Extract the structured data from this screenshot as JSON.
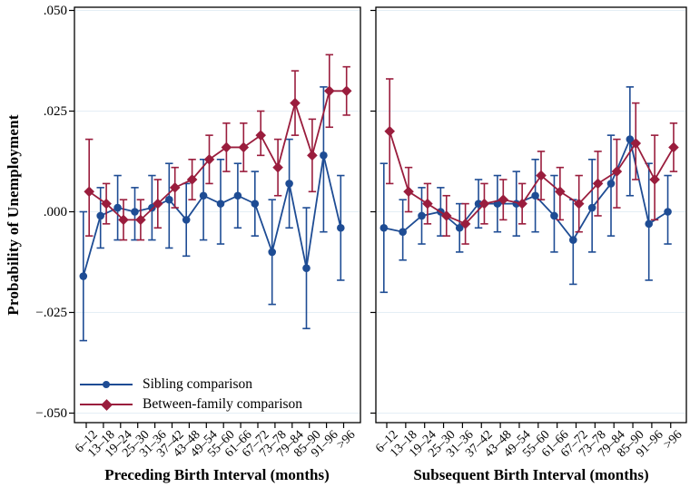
{
  "figure": {
    "y_axis_title": "Probability of Unemployment",
    "y_ticks": {
      "labels": [
        ".050",
        ".025",
        ".000",
        "−.025",
        "−.050"
      ],
      "values": [
        0.05,
        0.025,
        0.0,
        -0.025,
        -0.05
      ]
    },
    "colors": {
      "sibling": "#1e4c94",
      "between_family": "#9a1d3d",
      "grid": "#e4eef5",
      "frame": "#000000"
    },
    "legend": [
      {
        "label": "Sibling comparison",
        "marker": "circle",
        "series": "sibling"
      },
      {
        "label": "Between-family comparison",
        "marker": "diamond",
        "series": "between_family"
      }
    ],
    "x_tick_rotation": 45,
    "legend_position": "bottom-left-inside-left-panel"
  },
  "chart_data": [
    {
      "type": "line",
      "panel": "left",
      "xlabel": "Preceding Birth Interval (months)",
      "ylabel": "Probability of Unemployment",
      "ylim": [
        -0.05,
        0.05
      ],
      "grid": "horizontal-light",
      "error_bars": true,
      "categories": [
        "6–12",
        "13–18",
        "19–24",
        "25–30",
        "31–36",
        "37–42",
        "43–48",
        "49–54",
        "55–60",
        "61–66",
        "67–72",
        "73–78",
        "79–84",
        "85–90",
        "91–96",
        ">96"
      ],
      "series": [
        {
          "name": "Sibling comparison",
          "marker": "circle",
          "color": "#1e4c94",
          "values": [
            -0.016,
            -0.001,
            0.001,
            0.0,
            0.001,
            0.003,
            -0.002,
            0.004,
            0.002,
            0.004,
            0.002,
            -0.01,
            0.007,
            -0.014,
            0.014,
            -0.004
          ],
          "ci_low": [
            -0.032,
            -0.009,
            -0.007,
            -0.007,
            -0.007,
            -0.009,
            -0.011,
            -0.007,
            -0.008,
            -0.004,
            -0.006,
            -0.023,
            -0.004,
            -0.029,
            -0.005,
            -0.017
          ],
          "ci_high": [
            0.0,
            0.006,
            0.009,
            0.006,
            0.009,
            0.012,
            0.007,
            0.013,
            0.013,
            0.012,
            0.01,
            0.003,
            0.018,
            0.001,
            0.031,
            0.009
          ]
        },
        {
          "name": "Between-family comparison",
          "marker": "diamond",
          "color": "#9a1d3d",
          "values": [
            0.005,
            0.002,
            -0.002,
            -0.002,
            0.002,
            0.006,
            0.008,
            0.013,
            0.016,
            0.016,
            0.019,
            0.011,
            0.027,
            0.014,
            0.03,
            0.03
          ],
          "ci_low": [
            -0.006,
            -0.003,
            -0.007,
            -0.007,
            -0.004,
            0.001,
            0.003,
            0.007,
            0.01,
            0.01,
            0.014,
            0.004,
            0.019,
            0.005,
            0.021,
            0.024
          ],
          "ci_high": [
            0.018,
            0.007,
            0.003,
            0.003,
            0.008,
            0.011,
            0.013,
            0.019,
            0.022,
            0.022,
            0.025,
            0.018,
            0.035,
            0.023,
            0.039,
            0.036
          ]
        }
      ]
    },
    {
      "type": "line",
      "panel": "right",
      "xlabel": "Subsequent Birth Interval (months)",
      "ylabel": "",
      "ylim": [
        -0.05,
        0.05
      ],
      "grid": "horizontal-light",
      "error_bars": true,
      "categories": [
        "6–12",
        "13–18",
        "19–24",
        "25–30",
        "31–36",
        "37–42",
        "43–48",
        "49–54",
        "55–60",
        "61–66",
        "67–72",
        "73–78",
        "79–84",
        "85–90",
        "91–96",
        ">96"
      ],
      "series": [
        {
          "name": "Sibling comparison",
          "marker": "circle",
          "color": "#1e4c94",
          "values": [
            -0.004,
            -0.005,
            -0.001,
            0.0,
            -0.004,
            0.002,
            0.002,
            0.002,
            0.004,
            -0.001,
            -0.007,
            0.001,
            0.007,
            0.018,
            -0.003,
            0.0
          ],
          "ci_low": [
            -0.02,
            -0.012,
            -0.008,
            -0.006,
            -0.01,
            -0.004,
            -0.005,
            -0.006,
            -0.005,
            -0.01,
            -0.018,
            -0.01,
            -0.006,
            0.004,
            -0.017,
            -0.008
          ],
          "ci_high": [
            0.012,
            0.003,
            0.006,
            0.006,
            0.002,
            0.008,
            0.009,
            0.01,
            0.013,
            0.009,
            0.003,
            0.013,
            0.019,
            0.031,
            0.012,
            0.009
          ]
        },
        {
          "name": "Between-family comparison",
          "marker": "diamond",
          "color": "#9a1d3d",
          "values": [
            0.02,
            0.005,
            0.002,
            -0.001,
            -0.003,
            0.002,
            0.003,
            0.002,
            0.009,
            0.005,
            0.002,
            0.007,
            0.01,
            0.017,
            0.008,
            0.016
          ],
          "ci_low": [
            0.007,
            0.0,
            -0.003,
            -0.006,
            -0.008,
            -0.003,
            -0.002,
            -0.003,
            0.003,
            -0.002,
            -0.005,
            -0.001,
            0.001,
            0.008,
            -0.002,
            0.01
          ],
          "ci_high": [
            0.033,
            0.011,
            0.007,
            0.004,
            0.002,
            0.007,
            0.008,
            0.007,
            0.015,
            0.011,
            0.009,
            0.015,
            0.018,
            0.027,
            0.019,
            0.022
          ]
        }
      ]
    }
  ]
}
